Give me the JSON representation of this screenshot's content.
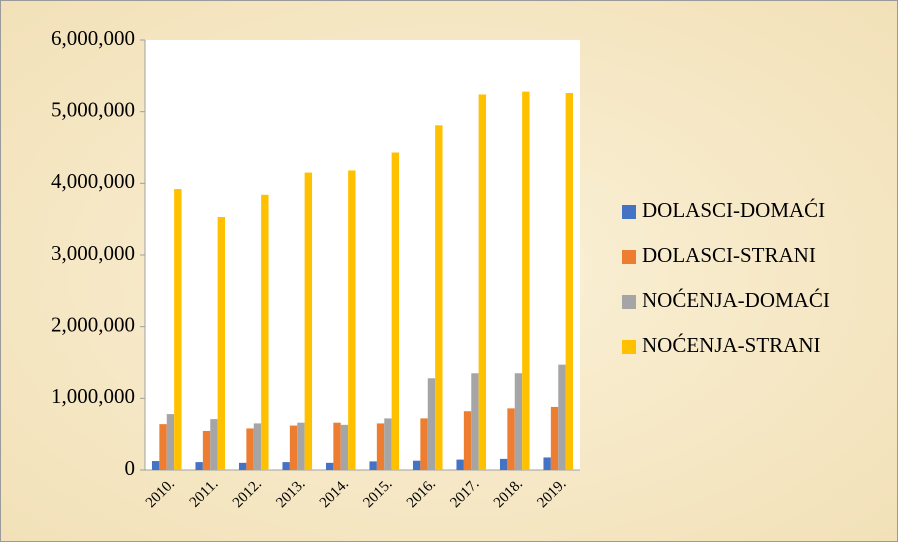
{
  "chart_data": {
    "type": "bar",
    "categories": [
      "2010.",
      "2011.",
      "2012.",
      "2013.",
      "2014.",
      "2015.",
      "2016.",
      "2017.",
      "2018.",
      "2019."
    ],
    "series": [
      {
        "name": "DOLASCI-DOMAĆI",
        "color": "#4472c4",
        "values": [
          125000,
          110000,
          100000,
          110000,
          100000,
          120000,
          130000,
          145000,
          155000,
          175000
        ]
      },
      {
        "name": "DOLASCI-STRANI",
        "color": "#ed7d31",
        "values": [
          640000,
          545000,
          580000,
          620000,
          660000,
          650000,
          720000,
          820000,
          860000,
          880000
        ]
      },
      {
        "name": "NOĆENJA-DOMAĆI",
        "color": "#a5a5a5",
        "values": [
          780000,
          710000,
          650000,
          660000,
          630000,
          720000,
          1280000,
          1350000,
          1350000,
          1470000
        ]
      },
      {
        "name": "NOĆENJA-STRANI",
        "color": "#ffc000",
        "values": [
          3920000,
          3530000,
          3840000,
          4150000,
          4180000,
          4430000,
          4810000,
          5240000,
          5280000,
          5260000
        ]
      }
    ],
    "ylim": [
      0,
      6000000
    ],
    "yticks": [
      0,
      {
        "value": 1000000,
        "label": "1,000,000"
      },
      {
        "value": 2000000,
        "label": "2,000,000"
      },
      {
        "value": 3000000,
        "label": "3,000,000"
      },
      {
        "value": 4000000,
        "label": "4,000,000"
      },
      {
        "value": 5000000,
        "label": "5,000,000"
      },
      {
        "value": 6000000,
        "label": "6,000,000"
      }
    ],
    "grid": false,
    "legend": "right"
  }
}
